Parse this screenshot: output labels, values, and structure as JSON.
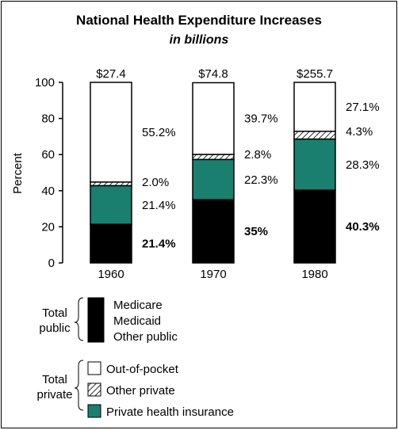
{
  "chart_data": {
    "type": "bar",
    "title": "National Health Expenditure Increases",
    "subtitle": "in billions",
    "ylabel": "Percent",
    "xlabel": "",
    "ylim": [
      0,
      100
    ],
    "yticks": [
      0,
      20,
      40,
      60,
      80,
      100
    ],
    "categories": [
      "1960",
      "1970",
      "1980"
    ],
    "totals": [
      "$27.4",
      "$74.8",
      "$255.7"
    ],
    "series": [
      {
        "name": "Total public",
        "values": [
          21.4,
          35,
          40.3
        ],
        "labels": [
          "21.4%",
          "35%",
          "40.3%"
        ],
        "color": "#000000",
        "label_bold": true
      },
      {
        "name": "Private health insurance",
        "values": [
          21.4,
          22.3,
          28.3
        ],
        "labels": [
          "21.4%",
          "22.3%",
          "28.3%"
        ],
        "color": "#1a7f6e",
        "label_bold": false
      },
      {
        "name": "Other private",
        "values": [
          2.0,
          2.8,
          4.3
        ],
        "labels": [
          "2.0%",
          "2.8%",
          "4.3%"
        ],
        "color": "hatch",
        "label_bold": false
      },
      {
        "name": "Out-of-pocket",
        "values": [
          55.2,
          39.7,
          27.1
        ],
        "labels": [
          "55.2%",
          "39.7%",
          "27.1%"
        ],
        "color": "#ffffff",
        "label_bold": false
      }
    ],
    "legend": {
      "public_group": "Total\npublic",
      "public_items": [
        "Medicare",
        "Medicaid",
        "Other public"
      ],
      "private_group": "Total\nprivate",
      "private_items": [
        "Out-of-pocket",
        "Other private",
        "Private health insurance"
      ],
      "placement": "bottom-left"
    },
    "grid": false
  }
}
